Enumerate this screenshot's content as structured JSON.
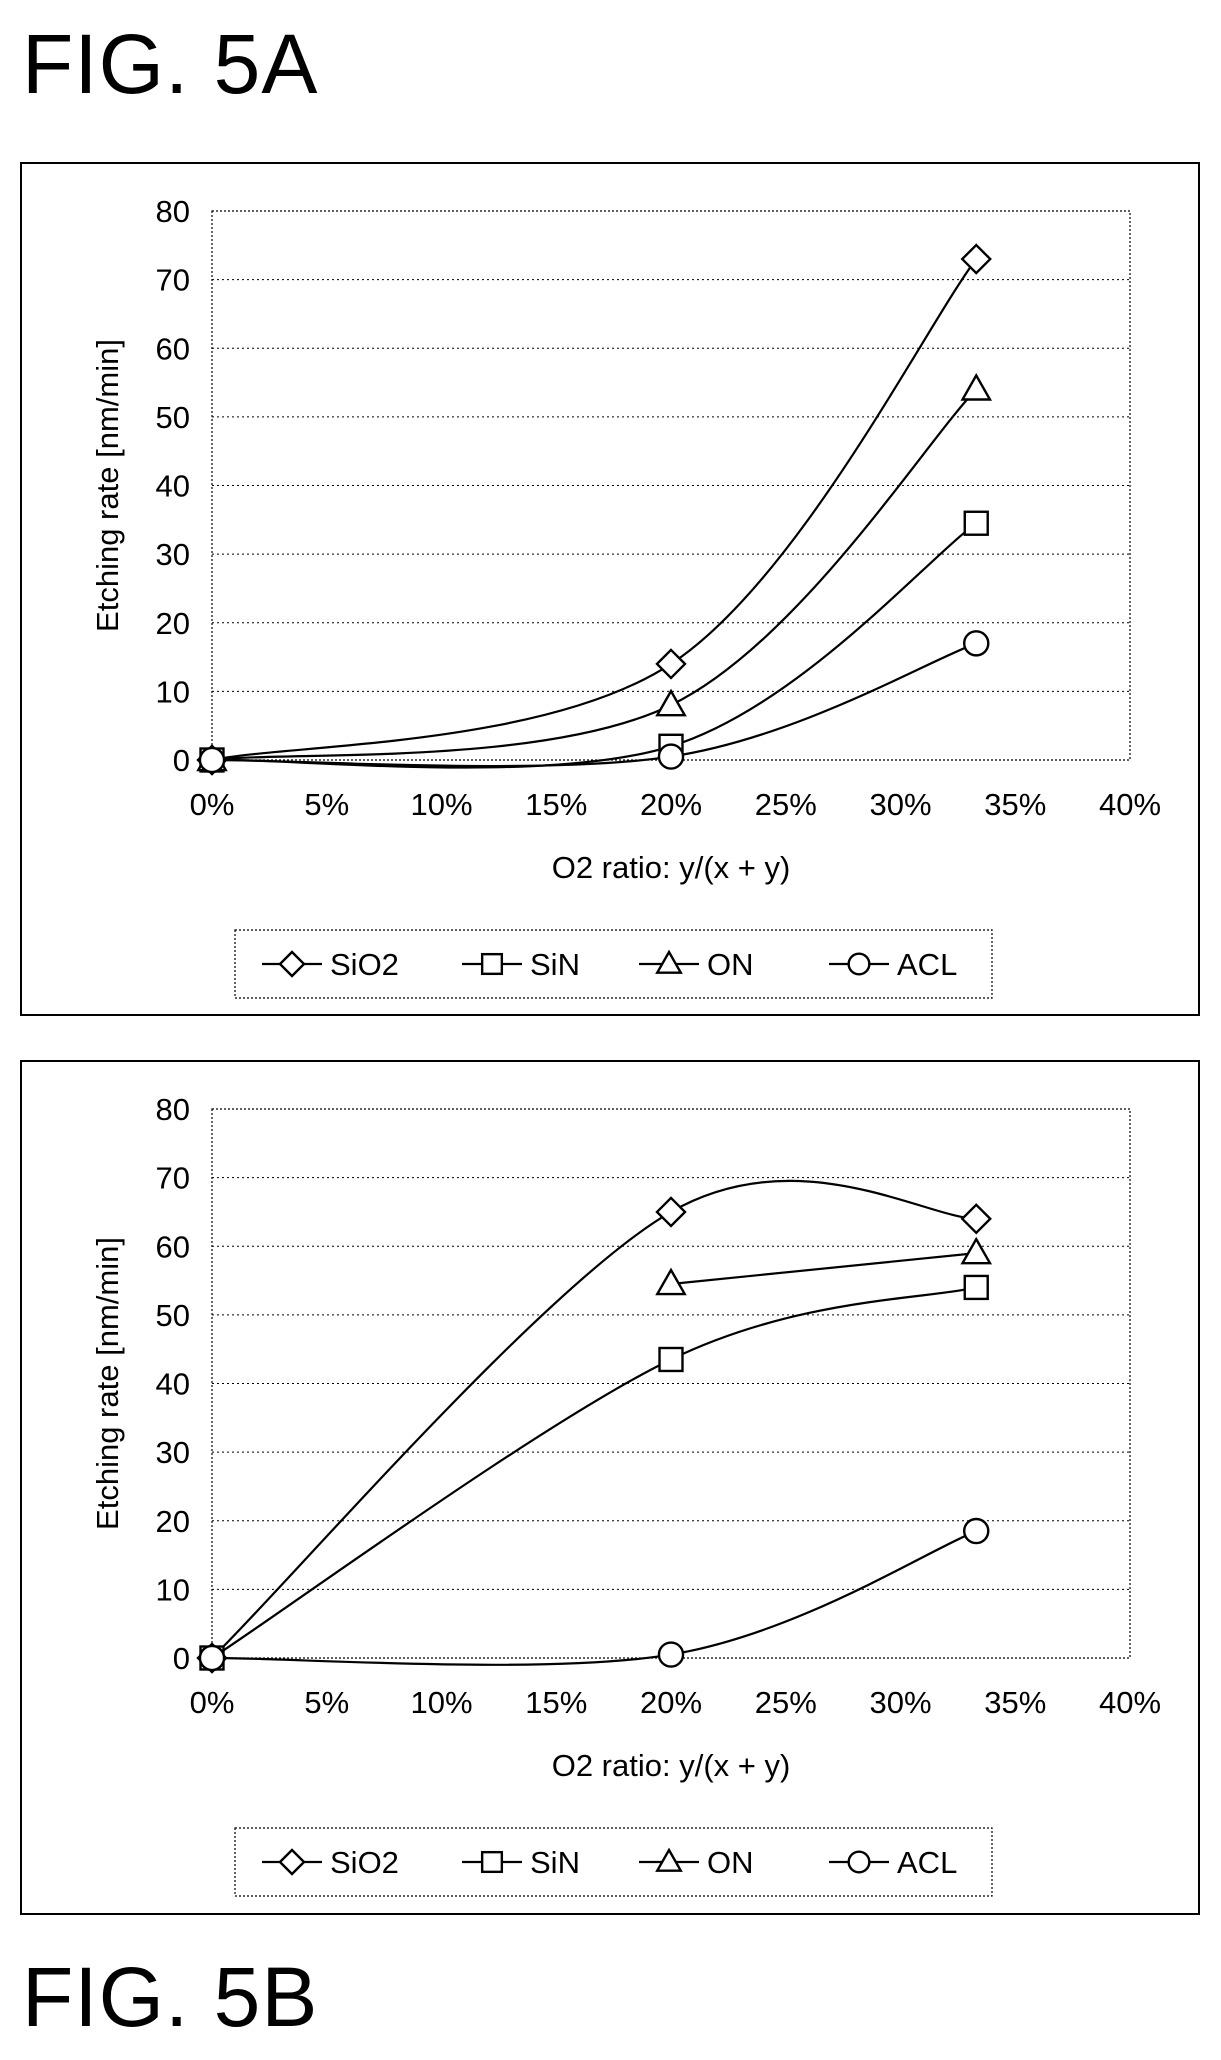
{
  "figures": {
    "a_label": "FIG. 5A",
    "b_label": "FIG. 5B"
  },
  "chart_data": [
    {
      "type": "line",
      "title": "",
      "xlabel": "O2 ratio: y/(x + y)",
      "ylabel": "Etching rate [nm/min]",
      "xlim": [
        0,
        40
      ],
      "ylim": [
        0,
        80
      ],
      "x_ticks": [
        "0%",
        "5%",
        "10%",
        "15%",
        "20%",
        "25%",
        "30%",
        "35%",
        "40%"
      ],
      "y_ticks": [
        "0",
        "10",
        "20",
        "30",
        "40",
        "50",
        "60",
        "70",
        "80"
      ],
      "grid": "horizontal dotted",
      "legend_position": "bottom",
      "series": [
        {
          "name": "SiO2",
          "marker": "diamond",
          "x": [
            0,
            20,
            33.3
          ],
          "y": [
            0,
            14,
            73
          ]
        },
        {
          "name": "SiN",
          "marker": "square",
          "x": [
            0,
            20,
            33.3
          ],
          "y": [
            0,
            2,
            34.5
          ]
        },
        {
          "name": "ON",
          "marker": "triangle",
          "x": [
            0,
            20,
            33.3
          ],
          "y": [
            0,
            8,
            54
          ]
        },
        {
          "name": "ACL",
          "marker": "circle",
          "x": [
            0,
            20,
            33.3
          ],
          "y": [
            0,
            0.5,
            17
          ]
        }
      ]
    },
    {
      "type": "line",
      "title": "",
      "xlabel": "O2 ratio: y/(x + y)",
      "ylabel": "Etching rate [nm/min]",
      "xlim": [
        0,
        40
      ],
      "ylim": [
        0,
        80
      ],
      "x_ticks": [
        "0%",
        "5%",
        "10%",
        "15%",
        "20%",
        "25%",
        "30%",
        "35%",
        "40%"
      ],
      "y_ticks": [
        "0",
        "10",
        "20",
        "30",
        "40",
        "50",
        "60",
        "70",
        "80"
      ],
      "grid": "horizontal dotted",
      "legend_position": "bottom",
      "series": [
        {
          "name": "SiO2",
          "marker": "diamond",
          "x": [
            0,
            20,
            33.3
          ],
          "y": [
            0,
            65,
            64
          ]
        },
        {
          "name": "SiN",
          "marker": "square",
          "x": [
            0,
            20,
            33.3
          ],
          "y": [
            0,
            43.5,
            54
          ]
        },
        {
          "name": "ON",
          "marker": "triangle",
          "x": [
            20,
            33.3
          ],
          "y": [
            54.5,
            59
          ]
        },
        {
          "name": "ACL",
          "marker": "circle",
          "x": [
            0,
            20,
            33.3
          ],
          "y": [
            0,
            0.5,
            18.5
          ]
        }
      ]
    }
  ]
}
